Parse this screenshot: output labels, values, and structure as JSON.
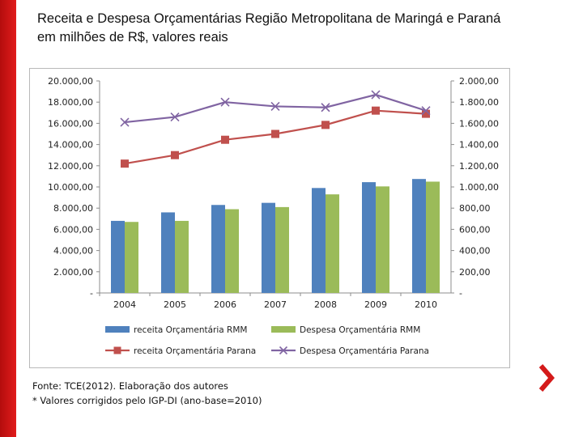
{
  "header": {
    "title_line1": "Receita e Despesa Orçamentárias Região Metropolitana de Maringá e Paraná",
    "title_line2": "em milhões de R$, valores reais"
  },
  "footnote": {
    "source": "Fonte: TCE(2012). Elaboração dos autores",
    "note": "* Valores corrigidos pelo IGP-DI (ano-base=2010)"
  },
  "colors": {
    "accent_bar": "#d41a1a",
    "receita_rmm": "#4f81bd",
    "despesa_rmm": "#9bbb59",
    "receita_parana": "#c0504d",
    "despesa_parana": "#8064a2"
  },
  "nav": {
    "next_icon": "chevron-right-icon"
  },
  "chart_data": {
    "type": "bar+line",
    "categories": [
      "2004",
      "2005",
      "2006",
      "2007",
      "2008",
      "2009",
      "2010"
    ],
    "left_axis": {
      "ylim": [
        0,
        20000
      ],
      "ticks": [
        "-",
        "2.000,00",
        "4.000,00",
        "6.000,00",
        "8.000,00",
        "10.000,00",
        "12.000,00",
        "14.000,00",
        "16.000,00",
        "18.000,00",
        "20.000,00"
      ]
    },
    "right_axis": {
      "ylim": [
        0,
        2000
      ],
      "ticks": [
        "-",
        "200,00",
        "400,00",
        "600,00",
        "800,00",
        "1.000,00",
        "1.200,00",
        "1.400,00",
        "1.600,00",
        "1.800,00",
        "2.000,00"
      ]
    },
    "series": [
      {
        "name": "receita  Orçamentária RMM",
        "type": "bar",
        "axis": "right",
        "values": [
          680,
          760,
          830,
          850,
          990,
          1045,
          1075
        ]
      },
      {
        "name": "Despesa Orçamentária RMM",
        "type": "bar",
        "axis": "right",
        "values": [
          670,
          680,
          790,
          810,
          930,
          1005,
          1050
        ]
      },
      {
        "name": "receita Orçamentária Parana",
        "type": "line",
        "marker": "square",
        "axis": "left",
        "values": [
          12200,
          13000,
          14450,
          15000,
          15850,
          17200,
          16900
        ]
      },
      {
        "name": "Despesa Orçamentária Parana",
        "type": "line",
        "marker": "x",
        "axis": "left",
        "values": [
          16100,
          16600,
          18000,
          17600,
          17500,
          18700,
          17200
        ]
      }
    ],
    "legend_position": "bottom",
    "grid": false
  }
}
